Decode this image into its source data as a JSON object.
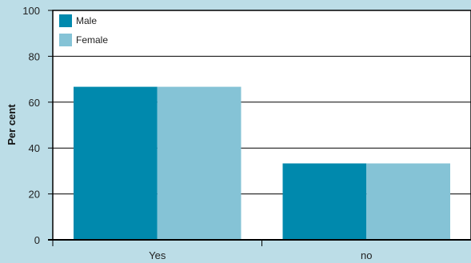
{
  "chart_data": {
    "type": "bar",
    "title": "",
    "xlabel": "",
    "ylabel": "Per cent",
    "categories": [
      "Yes",
      "no"
    ],
    "series": [
      {
        "name": "Male",
        "values": [
          66.7,
          33.3
        ]
      },
      {
        "name": "Female",
        "values": [
          66.7,
          33.3
        ]
      }
    ],
    "ylim": [
      0,
      100
    ],
    "yticks": [
      0,
      20,
      40,
      60,
      80,
      100
    ],
    "grid": true,
    "legend_position": "top-left",
    "colors": {
      "Male": "#0089ad",
      "Female": "#85c3d6"
    },
    "plot_background": "#ffffff",
    "page_background": "#bcdde7"
  }
}
